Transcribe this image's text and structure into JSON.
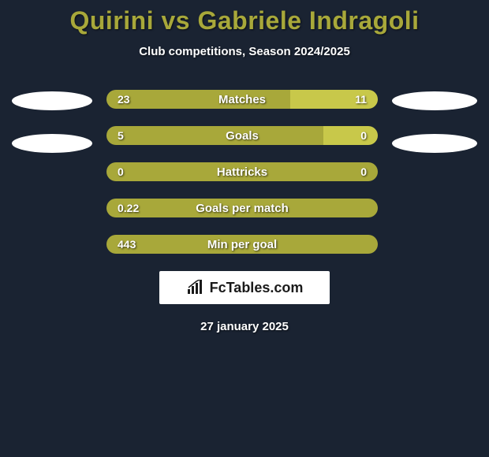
{
  "title": "Quirini vs Gabriele Indragoli",
  "subtitle": "Club competitions, Season 2024/2025",
  "colors": {
    "background": "#1a2332",
    "player1": "#a8a83a",
    "player2": "#c8c84a",
    "title_color": "#a8a83a",
    "text": "#ffffff",
    "ellipse": "#ffffff",
    "logo_bg": "#ffffff",
    "logo_text": "#1a1a1a"
  },
  "stats": [
    {
      "label": "Matches",
      "p1_value": "23",
      "p2_value": "11",
      "p1_pct": 67.6,
      "p2_pct": 32.4
    },
    {
      "label": "Goals",
      "p1_value": "5",
      "p2_value": "0",
      "p1_pct": 80,
      "p2_pct": 20
    },
    {
      "label": "Hattricks",
      "p1_value": "0",
      "p2_value": "0",
      "p1_pct": 100,
      "p2_pct": 0
    },
    {
      "label": "Goals per match",
      "p1_value": "0.22",
      "p2_value": "",
      "p1_pct": 100,
      "p2_pct": 0
    },
    {
      "label": "Min per goal",
      "p1_value": "443",
      "p2_value": "",
      "p1_pct": 100,
      "p2_pct": 0
    }
  ],
  "logo": "FcTables.com",
  "date": "27 january 2025",
  "ellipse_rows": 2
}
